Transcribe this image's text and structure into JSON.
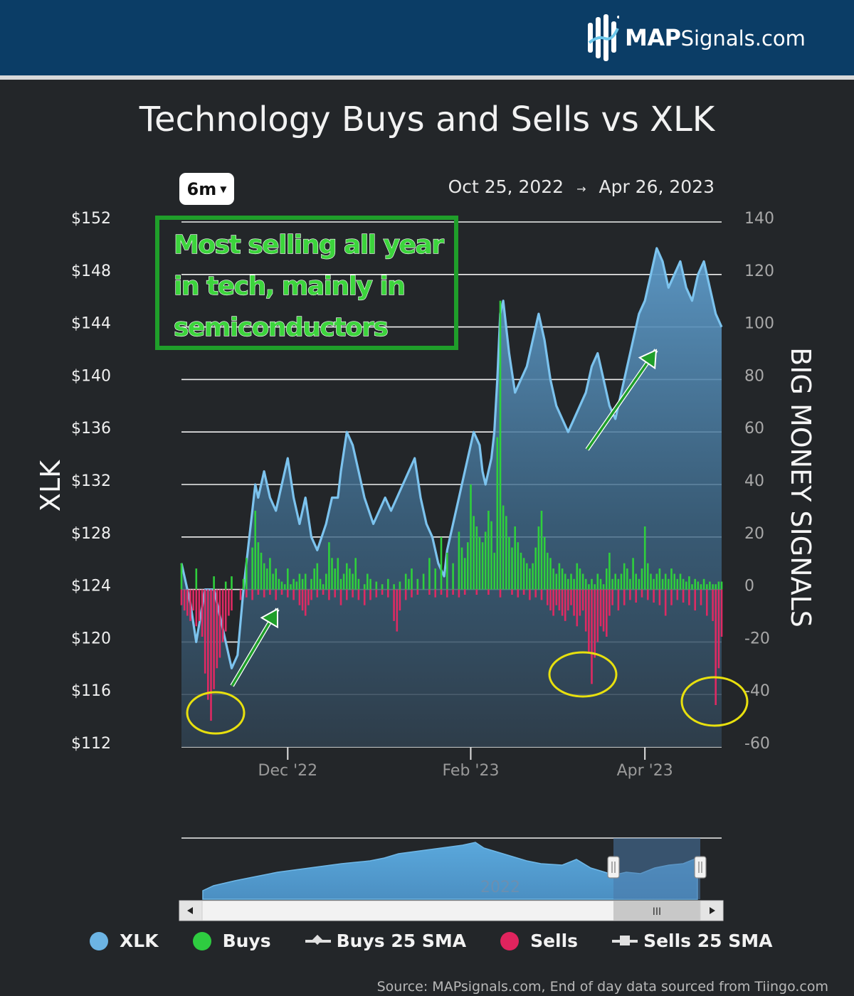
{
  "brand": {
    "name_bold": "MAP",
    "name_light": "Signals.com"
  },
  "range_selector": {
    "label": "6m"
  },
  "date_range": {
    "start": "Oct 25, 2022",
    "arrow": "→",
    "end": "Apr 26, 2023"
  },
  "annotation": {
    "lines": [
      "Most selling all year",
      "in tech, mainly in",
      "semiconductors"
    ]
  },
  "navigator": {
    "year_label": "2022",
    "scroll_thumb": "III",
    "left_arrow": "◂",
    "right_arrow": "▸"
  },
  "legend": [
    {
      "label": "XLK",
      "symbol": "dot",
      "color": "#6cb4e4"
    },
    {
      "label": "Buys",
      "symbol": "dot",
      "color": "#2ecc40"
    },
    {
      "label": "Buys 25 SMA",
      "symbol": "line-diamond",
      "color": "#e0e0e0"
    },
    {
      "label": "Sells",
      "symbol": "dot",
      "color": "#e0245e"
    },
    {
      "label": "Sells 25 SMA",
      "symbol": "line-square",
      "color": "#e0e0e0"
    }
  ],
  "source": "Source: MAPsignals.com, End of day data sourced from Tiingo.com",
  "chart_data": {
    "type": "line",
    "title": "Technology Buys and Sells vs XLK",
    "ylabel_left": "XLK",
    "ylabel_right": "BIG MONEY SIGNALS",
    "left_axis": {
      "ticks": [
        "$152",
        "$148",
        "$144",
        "$140",
        "$136",
        "$132",
        "$128",
        "$124",
        "$120",
        "$116",
        "$112"
      ],
      "min": 112,
      "max": 152
    },
    "right_axis": {
      "ticks": [
        "140",
        "120",
        "100",
        "80",
        "60",
        "40",
        "20",
        "0",
        "-20",
        "-40",
        "-60"
      ],
      "min": -60,
      "max": 140
    },
    "x_ticks": [
      {
        "label": "Dec '22",
        "day": 36
      },
      {
        "label": "Feb '23",
        "day": 98
      },
      {
        "label": "Apr '23",
        "day": 157
      }
    ],
    "x_range_days": [
      0,
      183
    ],
    "xlk_series": {
      "name": "XLK",
      "points": [
        [
          0,
          126
        ],
        [
          3,
          123
        ],
        [
          5,
          120
        ],
        [
          8,
          124
        ],
        [
          11,
          124
        ],
        [
          14,
          121
        ],
        [
          17,
          118
        ],
        [
          19,
          119
        ],
        [
          21,
          124
        ],
        [
          23,
          128
        ],
        [
          25,
          132
        ],
        [
          26,
          131
        ],
        [
          28,
          133
        ],
        [
          30,
          131
        ],
        [
          32,
          130
        ],
        [
          34,
          132
        ],
        [
          36,
          134
        ],
        [
          38,
          131
        ],
        [
          40,
          129
        ],
        [
          42,
          131
        ],
        [
          44,
          128
        ],
        [
          46,
          127
        ],
        [
          49,
          129
        ],
        [
          51,
          131
        ],
        [
          53,
          131
        ],
        [
          54,
          133
        ],
        [
          56,
          136
        ],
        [
          58,
          135
        ],
        [
          60,
          133
        ],
        [
          62,
          131
        ],
        [
          65,
          129
        ],
        [
          67,
          130
        ],
        [
          69,
          131
        ],
        [
          71,
          130
        ],
        [
          73,
          131
        ],
        [
          75,
          132
        ],
        [
          77,
          133
        ],
        [
          79,
          134
        ],
        [
          81,
          131
        ],
        [
          83,
          129
        ],
        [
          85,
          128
        ],
        [
          87,
          126
        ],
        [
          89,
          125
        ],
        [
          90,
          127
        ],
        [
          92,
          129
        ],
        [
          94,
          131
        ],
        [
          95,
          132
        ],
        [
          97,
          134
        ],
        [
          99,
          136
        ],
        [
          101,
          135
        ],
        [
          102,
          133
        ],
        [
          103,
          132
        ],
        [
          105,
          134
        ],
        [
          106,
          136
        ],
        [
          107,
          140
        ],
        [
          108,
          145
        ],
        [
          109,
          146
        ],
        [
          111,
          142
        ],
        [
          113,
          139
        ],
        [
          115,
          140
        ],
        [
          117,
          141
        ],
        [
          119,
          143
        ],
        [
          121,
          145
        ],
        [
          123,
          143
        ],
        [
          125,
          140
        ],
        [
          127,
          138
        ],
        [
          129,
          137
        ],
        [
          131,
          136
        ],
        [
          133,
          137
        ],
        [
          135,
          138
        ],
        [
          137,
          139
        ],
        [
          139,
          141
        ],
        [
          141,
          142
        ],
        [
          143,
          140
        ],
        [
          145,
          138
        ],
        [
          147,
          137
        ],
        [
          149,
          139
        ],
        [
          151,
          141
        ],
        [
          153,
          143
        ],
        [
          155,
          145
        ],
        [
          157,
          146
        ],
        [
          159,
          148
        ],
        [
          161,
          150
        ],
        [
          163,
          149
        ],
        [
          165,
          147
        ],
        [
          167,
          148
        ],
        [
          169,
          149
        ],
        [
          171,
          147
        ],
        [
          173,
          146
        ],
        [
          175,
          148
        ],
        [
          177,
          149
        ],
        [
          179,
          147
        ],
        [
          181,
          145
        ],
        [
          183,
          144
        ]
      ]
    },
    "buys_bars": [
      [
        0,
        10
      ],
      [
        5,
        8
      ],
      [
        11,
        5
      ],
      [
        15,
        3
      ],
      [
        17,
        5
      ],
      [
        21,
        4
      ],
      [
        22,
        12
      ],
      [
        24,
        16
      ],
      [
        25,
        30
      ],
      [
        26,
        18
      ],
      [
        27,
        14
      ],
      [
        28,
        10
      ],
      [
        29,
        8
      ],
      [
        30,
        12
      ],
      [
        31,
        6
      ],
      [
        32,
        8
      ],
      [
        33,
        4
      ],
      [
        34,
        3
      ],
      [
        35,
        2
      ],
      [
        36,
        8
      ],
      [
        37,
        2
      ],
      [
        38,
        4
      ],
      [
        39,
        3
      ],
      [
        40,
        6
      ],
      [
        41,
        4
      ],
      [
        42,
        6
      ],
      [
        44,
        4
      ],
      [
        45,
        8
      ],
      [
        46,
        10
      ],
      [
        47,
        4
      ],
      [
        48,
        2
      ],
      [
        49,
        6
      ],
      [
        50,
        18
      ],
      [
        51,
        12
      ],
      [
        52,
        8
      ],
      [
        53,
        12
      ],
      [
        54,
        4
      ],
      [
        55,
        6
      ],
      [
        56,
        10
      ],
      [
        57,
        8
      ],
      [
        58,
        6
      ],
      [
        59,
        12
      ],
      [
        60,
        4
      ],
      [
        62,
        2
      ],
      [
        63,
        6
      ],
      [
        64,
        4
      ],
      [
        66,
        3
      ],
      [
        68,
        2
      ],
      [
        70,
        4
      ],
      [
        72,
        2
      ],
      [
        74,
        3
      ],
      [
        76,
        6
      ],
      [
        77,
        4
      ],
      [
        78,
        8
      ],
      [
        80,
        4
      ],
      [
        82,
        6
      ],
      [
        84,
        12
      ],
      [
        86,
        8
      ],
      [
        88,
        20
      ],
      [
        90,
        14
      ],
      [
        92,
        10
      ],
      [
        94,
        22
      ],
      [
        95,
        16
      ],
      [
        96,
        12
      ],
      [
        97,
        18
      ],
      [
        98,
        40
      ],
      [
        99,
        28
      ],
      [
        100,
        24
      ],
      [
        101,
        20
      ],
      [
        102,
        18
      ],
      [
        103,
        22
      ],
      [
        104,
        30
      ],
      [
        105,
        26
      ],
      [
        106,
        14
      ],
      [
        107,
        58
      ],
      [
        108,
        110
      ],
      [
        109,
        32
      ],
      [
        110,
        28
      ],
      [
        111,
        20
      ],
      [
        112,
        16
      ],
      [
        113,
        24
      ],
      [
        114,
        18
      ],
      [
        115,
        14
      ],
      [
        116,
        12
      ],
      [
        117,
        10
      ],
      [
        118,
        8
      ],
      [
        119,
        10
      ],
      [
        120,
        16
      ],
      [
        121,
        24
      ],
      [
        122,
        30
      ],
      [
        123,
        20
      ],
      [
        124,
        14
      ],
      [
        125,
        12
      ],
      [
        126,
        8
      ],
      [
        127,
        6
      ],
      [
        128,
        10
      ],
      [
        129,
        8
      ],
      [
        130,
        6
      ],
      [
        131,
        4
      ],
      [
        132,
        6
      ],
      [
        133,
        4
      ],
      [
        134,
        10
      ],
      [
        135,
        8
      ],
      [
        136,
        6
      ],
      [
        137,
        4
      ],
      [
        138,
        2
      ],
      [
        139,
        4
      ],
      [
        140,
        2
      ],
      [
        141,
        6
      ],
      [
        142,
        4
      ],
      [
        143,
        2
      ],
      [
        144,
        8
      ],
      [
        145,
        14
      ],
      [
        146,
        4
      ],
      [
        147,
        6
      ],
      [
        148,
        4
      ],
      [
        149,
        6
      ],
      [
        150,
        10
      ],
      [
        151,
        8
      ],
      [
        152,
        4
      ],
      [
        153,
        12
      ],
      [
        154,
        6
      ],
      [
        155,
        4
      ],
      [
        156,
        8
      ],
      [
        157,
        24
      ],
      [
        158,
        10
      ],
      [
        159,
        6
      ],
      [
        160,
        4
      ],
      [
        161,
        6
      ],
      [
        162,
        8
      ],
      [
        163,
        4
      ],
      [
        164,
        6
      ],
      [
        165,
        4
      ],
      [
        166,
        8
      ],
      [
        167,
        6
      ],
      [
        168,
        4
      ],
      [
        169,
        6
      ],
      [
        170,
        4
      ],
      [
        171,
        3
      ],
      [
        172,
        5
      ],
      [
        173,
        2
      ],
      [
        174,
        4
      ],
      [
        175,
        3
      ],
      [
        176,
        2
      ],
      [
        177,
        4
      ],
      [
        178,
        2
      ],
      [
        179,
        3
      ],
      [
        180,
        2
      ],
      [
        181,
        2
      ],
      [
        182,
        3
      ],
      [
        183,
        3
      ]
    ],
    "sells_bars": [
      [
        0,
        -6
      ],
      [
        1,
        -8
      ],
      [
        2,
        -10
      ],
      [
        3,
        -12
      ],
      [
        4,
        -8
      ],
      [
        5,
        -14
      ],
      [
        6,
        -12
      ],
      [
        7,
        -18
      ],
      [
        8,
        -32
      ],
      [
        9,
        -42
      ],
      [
        10,
        -50
      ],
      [
        11,
        -38
      ],
      [
        12,
        -30
      ],
      [
        13,
        -26
      ],
      [
        14,
        -20
      ],
      [
        15,
        -16
      ],
      [
        16,
        -10
      ],
      [
        17,
        -8
      ],
      [
        20,
        -4
      ],
      [
        22,
        -3
      ],
      [
        24,
        -4
      ],
      [
        26,
        -2
      ],
      [
        28,
        -3
      ],
      [
        30,
        -2
      ],
      [
        32,
        -4
      ],
      [
        34,
        -2
      ],
      [
        36,
        -3
      ],
      [
        38,
        -4
      ],
      [
        40,
        -6
      ],
      [
        41,
        -8
      ],
      [
        42,
        -10
      ],
      [
        43,
        -6
      ],
      [
        44,
        -4
      ],
      [
        46,
        -3
      ],
      [
        48,
        -2
      ],
      [
        50,
        -4
      ],
      [
        52,
        -3
      ],
      [
        54,
        -6
      ],
      [
        56,
        -4
      ],
      [
        58,
        -3
      ],
      [
        60,
        -4
      ],
      [
        62,
        -6
      ],
      [
        64,
        -4
      ],
      [
        66,
        -3
      ],
      [
        68,
        -2
      ],
      [
        70,
        -3
      ],
      [
        72,
        -12
      ],
      [
        73,
        -16
      ],
      [
        74,
        -8
      ],
      [
        76,
        -4
      ],
      [
        78,
        -3
      ],
      [
        80,
        -2
      ],
      [
        84,
        -2
      ],
      [
        86,
        -3
      ],
      [
        88,
        -2
      ],
      [
        90,
        -3
      ],
      [
        92,
        -2
      ],
      [
        94,
        -3
      ],
      [
        96,
        -2
      ],
      [
        100,
        -2
      ],
      [
        104,
        -2
      ],
      [
        108,
        -3
      ],
      [
        112,
        -2
      ],
      [
        114,
        -3
      ],
      [
        116,
        -2
      ],
      [
        118,
        -4
      ],
      [
        120,
        -3
      ],
      [
        122,
        -4
      ],
      [
        124,
        -6
      ],
      [
        125,
        -8
      ],
      [
        126,
        -10
      ],
      [
        127,
        -6
      ],
      [
        128,
        -8
      ],
      [
        129,
        -10
      ],
      [
        130,
        -12
      ],
      [
        131,
        -8
      ],
      [
        132,
        -6
      ],
      [
        133,
        -10
      ],
      [
        134,
        -14
      ],
      [
        135,
        -10
      ],
      [
        136,
        -8
      ],
      [
        137,
        -16
      ],
      [
        138,
        -24
      ],
      [
        139,
        -36
      ],
      [
        140,
        -26
      ],
      [
        141,
        -20
      ],
      [
        142,
        -14
      ],
      [
        143,
        -16
      ],
      [
        144,
        -18
      ],
      [
        145,
        -10
      ],
      [
        146,
        -6
      ],
      [
        148,
        -8
      ],
      [
        150,
        -6
      ],
      [
        152,
        -4
      ],
      [
        154,
        -5
      ],
      [
        156,
        -3
      ],
      [
        158,
        -4
      ],
      [
        160,
        -5
      ],
      [
        162,
        -6
      ],
      [
        164,
        -10
      ],
      [
        166,
        -6
      ],
      [
        168,
        -4
      ],
      [
        170,
        -5
      ],
      [
        172,
        -6
      ],
      [
        174,
        -8
      ],
      [
        176,
        -6
      ],
      [
        178,
        -10
      ],
      [
        180,
        -12
      ],
      [
        181,
        -44
      ],
      [
        182,
        -30
      ],
      [
        183,
        -18
      ]
    ],
    "grid": true,
    "legend_position": "bottom"
  }
}
